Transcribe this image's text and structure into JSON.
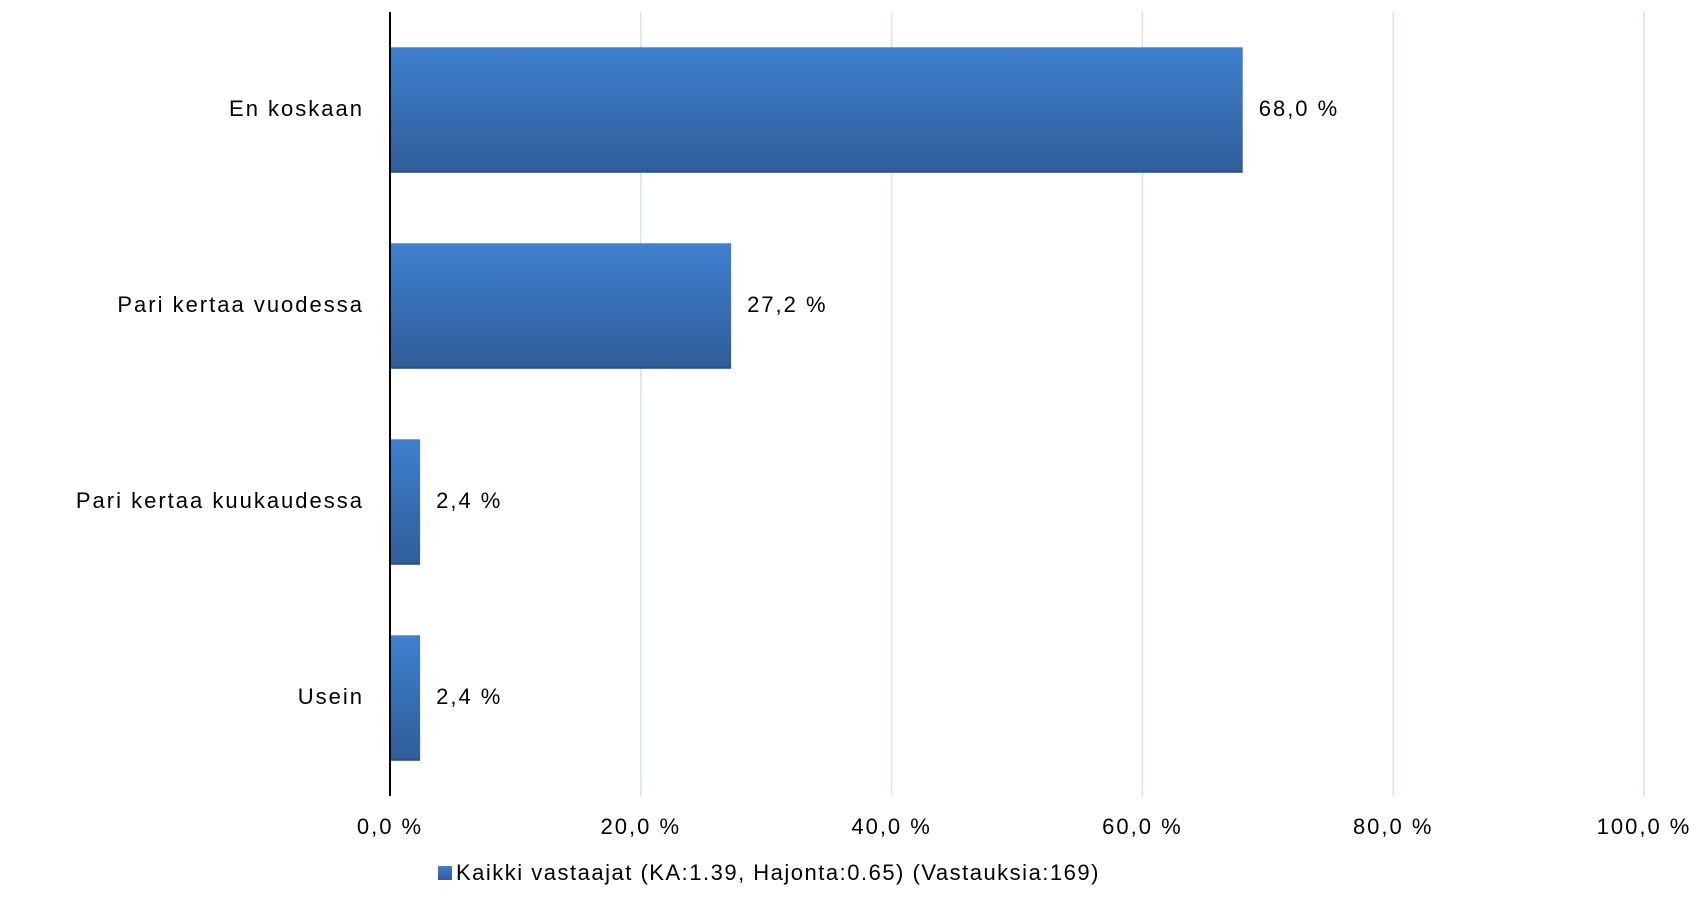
{
  "chart_data": {
    "type": "bar",
    "orientation": "horizontal",
    "categories": [
      "En koskaan",
      "Pari kertaa vuodessa",
      "Pari kertaa kuukaudessa",
      "Usein"
    ],
    "series": [
      {
        "name": "Kaikki vastaajat (KA:1.39, Hajonta:0.65) (Vastauksia:169)",
        "values": [
          68.0,
          27.2,
          2.4,
          2.4
        ],
        "labels": [
          "68,0 %",
          "27,2 %",
          "2,4 %",
          "2,4 %"
        ]
      }
    ],
    "xlim": [
      0,
      100
    ],
    "xticks": [
      0,
      20,
      40,
      60,
      80,
      100
    ],
    "xtick_labels": [
      "0,0 %",
      "20,0 %",
      "40,0 %",
      "60,0 %",
      "80,0 %",
      "100,0 %"
    ],
    "grid": "vertical",
    "legend_position": "bottom",
    "colors": {
      "bar_top": "#3e80cf",
      "bar_bottom": "#2f5d99",
      "gridline": "#d9e3ec",
      "axis": "#000000"
    }
  }
}
